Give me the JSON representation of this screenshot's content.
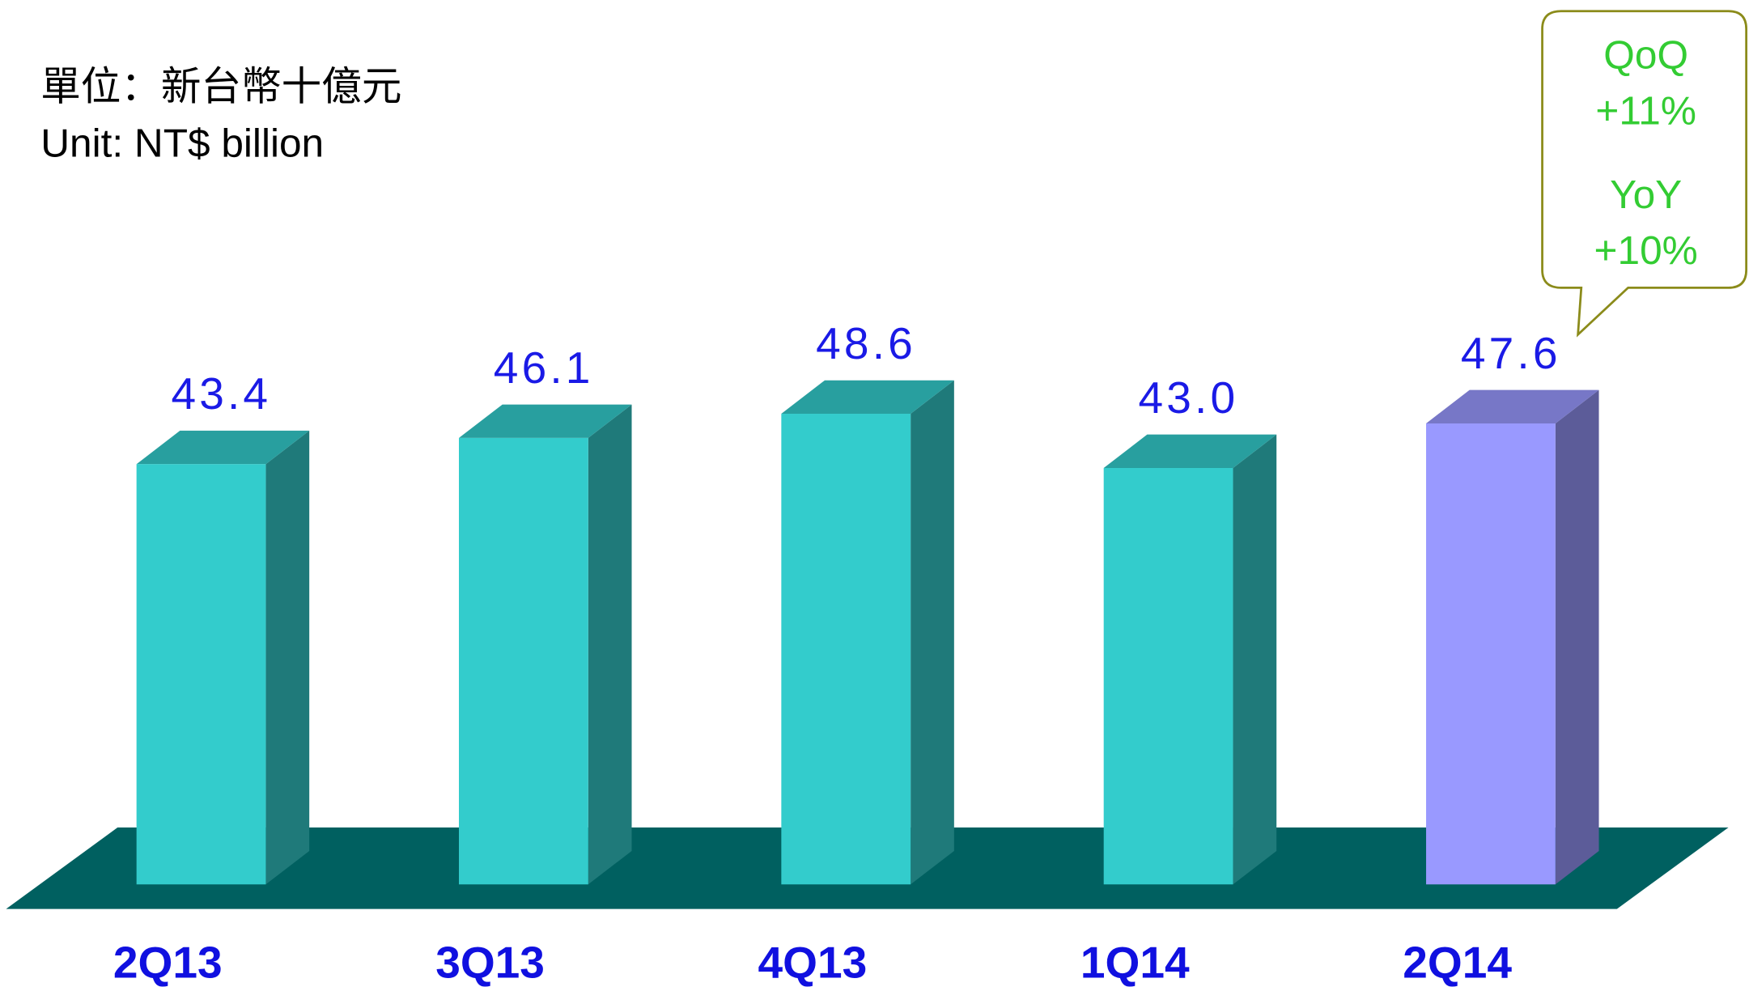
{
  "chart_data": {
    "type": "bar3d",
    "unit_labels": [
      "單位：新台幣十億元",
      "Unit: NT$ billion"
    ],
    "categories": [
      "2Q13",
      "3Q13",
      "4Q13",
      "1Q14",
      "2Q14"
    ],
    "values": [
      43.4,
      46.1,
      48.6,
      43.0,
      47.6
    ],
    "value_labels": [
      "43.4",
      "46.1",
      "48.6",
      "43.0",
      "47.6"
    ],
    "colors": [
      "#33cccc",
      "#33cccc",
      "#33cccc",
      "#33cccc",
      "#9999ff"
    ],
    "annotations": [
      "QoQ",
      "+11%",
      "YoY",
      "+10%"
    ]
  }
}
